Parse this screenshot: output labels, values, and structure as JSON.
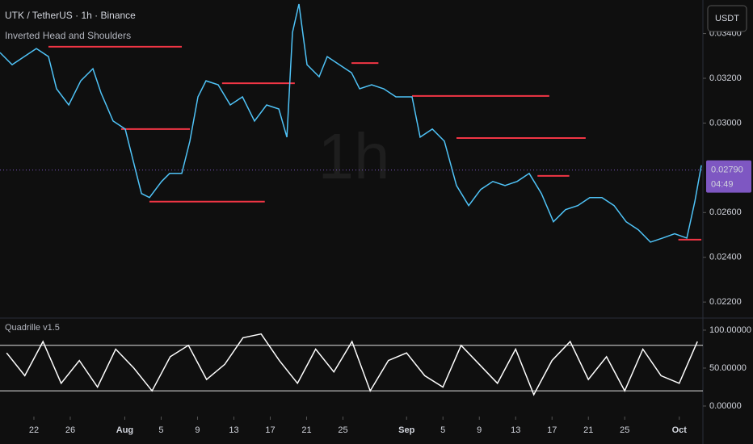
{
  "chart_data": [
    {
      "type": "line",
      "title": "UTK / TetherUS · 1h · Binance",
      "subtitle": "Inverted Head and Shoulders",
      "watermark": "1h",
      "currency": "USDT",
      "x": [
        18.27,
        19.6,
        20.94,
        22.27,
        23.6,
        24.49,
        25.83,
        27.16,
        28.49,
        29.38,
        30.71,
        32.05,
        32.94,
        33.83,
        34.71,
        36.05,
        36.94,
        38.27,
        39.16,
        40.05,
        40.94,
        42.27,
        43.6,
        44.94,
        46.27,
        47.6,
        48.94,
        49.83,
        50.45,
        51.16,
        52.05,
        53.38,
        54.27,
        55.6,
        56.94,
        57.83,
        59.16,
        60.49,
        61.83,
        63.6,
        64.49,
        65.83,
        67.16,
        68.49,
        69.83,
        71.16,
        72.49,
        73.83,
        75.16,
        76.49,
        77.83,
        79.16,
        80.49,
        81.83,
        83.16,
        84.49,
        85.83,
        87.16,
        88.49,
        89.83,
        91.16,
        92.49,
        93.83,
        94.71,
        95.43
      ],
      "series": [
        {
          "color": "#4fc3f7",
          "values": [
            0.03315,
            0.03261,
            0.03297,
            0.03333,
            0.03297,
            0.03153,
            0.03081,
            0.03189,
            0.03243,
            0.03135,
            0.03009,
            0.02973,
            0.02829,
            0.02685,
            0.02667,
            0.02739,
            0.02775,
            0.02775,
            0.02919,
            0.03117,
            0.03189,
            0.03171,
            0.03081,
            0.03117,
            0.03009,
            0.03081,
            0.03063,
            0.02937,
            0.03405,
            0.03532,
            0.03261,
            0.03207,
            0.03297,
            0.03261,
            0.03225,
            0.03153,
            0.03171,
            0.03153,
            0.03117,
            0.03117,
            0.02937,
            0.02973,
            0.02919,
            0.02721,
            0.02631,
            0.02703,
            0.02739,
            0.02721,
            0.02739,
            0.02775,
            0.02685,
            0.02559,
            0.02613,
            0.02631,
            0.02667,
            0.02667,
            0.02631,
            0.02559,
            0.02523,
            0.02468,
            0.02486,
            0.02505,
            0.02486,
            0.02649,
            0.02811
          ]
        }
      ],
      "levels": [
        {
          "value": 0.03341,
          "start": 23.6,
          "end": 38.27
        },
        {
          "value": 0.03178,
          "start": 42.7,
          "end": 50.7
        },
        {
          "value": 0.03268,
          "start": 56.94,
          "end": 59.9
        },
        {
          "value": 0.03121,
          "start": 63.6,
          "end": 78.7
        },
        {
          "value": 0.02973,
          "start": 31.6,
          "end": 39.16
        },
        {
          "value": 0.02933,
          "start": 68.49,
          "end": 82.7
        },
        {
          "value": 0.02649,
          "start": 34.71,
          "end": 47.4
        },
        {
          "value": 0.02764,
          "start": 77.4,
          "end": 80.9
        },
        {
          "value": 0.02479,
          "start": 92.9,
          "end": 95.43
        }
      ],
      "level_color": "#f23645",
      "last_price": {
        "value": 0.0279,
        "label": "0.02790"
      },
      "countdown": "04:49",
      "xlim": [
        18.27,
        95.6
      ],
      "ylim": [
        0.02132,
        0.0355
      ],
      "xticks": [
        22,
        26,
        {
          "value": 32,
          "label": "Aug"
        },
        {
          "value": 36,
          "label": "5"
        },
        {
          "value": 40,
          "label": "9"
        },
        {
          "value": 44,
          "label": "13"
        },
        {
          "value": 48,
          "label": "17"
        },
        {
          "value": 52,
          "label": "21"
        },
        {
          "value": 56,
          "label": "25"
        },
        {
          "value": 63,
          "label": "Sep"
        },
        {
          "value": 67,
          "label": "5"
        },
        {
          "value": 71,
          "label": "9"
        },
        {
          "value": 75,
          "label": "13"
        },
        {
          "value": 79,
          "label": "17"
        },
        {
          "value": 83,
          "label": "21"
        },
        {
          "value": 87,
          "label": "25"
        },
        {
          "value": 93,
          "label": "Oct"
        }
      ],
      "yticks": [
        {
          "value": 0.022,
          "label": "0.02200"
        },
        {
          "value": 0.024,
          "label": "0.02400"
        },
        {
          "value": 0.026,
          "label": "0.02600"
        },
        {
          "value": 0.03,
          "label": "0.03000"
        },
        {
          "value": 0.032,
          "label": "0.03200"
        },
        {
          "value": 0.034,
          "label": "0.03400"
        }
      ]
    },
    {
      "type": "line",
      "title": "Quadrille v1.5",
      "x": [
        19,
        21,
        23,
        25,
        27,
        29,
        31,
        33,
        35,
        37,
        39,
        41,
        43,
        45,
        47,
        49,
        51,
        53,
        55,
        57,
        59,
        61,
        63,
        65,
        67,
        69,
        71,
        73,
        75,
        77,
        79,
        81,
        83,
        85,
        87,
        89,
        91,
        93,
        95
      ],
      "series": [
        {
          "color": "#ffffff",
          "values": [
            70,
            40,
            85,
            30,
            60,
            25,
            75,
            50,
            20,
            65,
            80,
            35,
            55,
            90,
            95,
            60,
            30,
            75,
            45,
            85,
            20,
            60,
            70,
            40,
            25,
            80,
            55,
            30,
            75,
            15,
            60,
            85,
            35,
            65,
            20,
            75,
            40,
            30,
            85
          ]
        }
      ],
      "bands": [
        80,
        20
      ],
      "ylim": [
        -12.8,
        113.8
      ],
      "yticks": [
        {
          "value": 0,
          "label": "0.00000"
        },
        {
          "value": 50,
          "label": "50.00000"
        },
        {
          "value": 100,
          "label": "100.00000"
        }
      ]
    }
  ]
}
